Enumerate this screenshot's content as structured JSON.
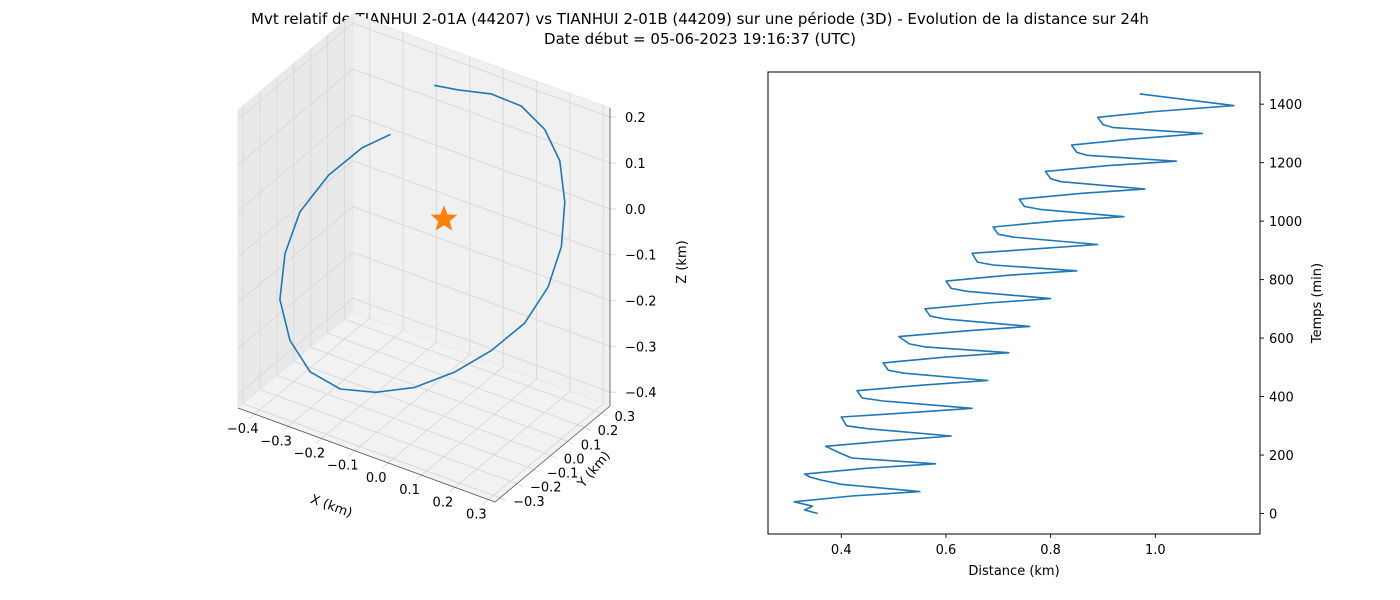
{
  "title_line1": "Mvt relatif de TIANHUI 2-01A (44207) vs TIANHUI 2-01B (44209) sur une période (3D) - Evolution de la distance sur 24h",
  "title_line2": "Date début = 05-06-2023 19:16:37 (UTC)",
  "colors": {
    "series": "#1f77b4",
    "marker": "#ff7f0e",
    "pane": "#f2f2f2",
    "grid": "#d8d8d8"
  },
  "chart_data": [
    {
      "type": "line3d",
      "xlabel": "X (km)",
      "ylabel": "Y (km)",
      "zlabel": "Z (km)",
      "xticks": [
        "−0.4",
        "−0.3",
        "−0.2",
        "−0.1",
        "0.0",
        "0.1",
        "0.2",
        "0.3"
      ],
      "yticks": [
        "−0.3",
        "−0.2",
        "−0.1",
        "0.0",
        "0.1",
        "0.2",
        "0.3"
      ],
      "zticks": [
        "−0.4",
        "−0.3",
        "−0.2",
        "−0.1",
        "0.0",
        "0.1",
        "0.2"
      ],
      "xlim": [
        -0.45,
        0.32
      ],
      "ylim": [
        -0.33,
        0.35
      ],
      "zlim": [
        -0.43,
        0.22
      ],
      "grid": true,
      "marker": {
        "shape": "star",
        "x": 0.0,
        "y": 0.0,
        "z": 0.0
      },
      "trajectory": [
        [
          -0.08,
          0.1,
          0.24
        ],
        [
          -0.02,
          0.12,
          0.24
        ],
        [
          0.06,
          0.16,
          0.24
        ],
        [
          0.13,
          0.2,
          0.22
        ],
        [
          0.18,
          0.24,
          0.17
        ],
        [
          0.21,
          0.27,
          0.1
        ],
        [
          0.22,
          0.28,
          0.01
        ],
        [
          0.21,
          0.28,
          -0.09
        ],
        [
          0.18,
          0.26,
          -0.18
        ],
        [
          0.13,
          0.22,
          -0.26
        ],
        [
          0.06,
          0.16,
          -0.32
        ],
        [
          -0.02,
          0.1,
          -0.37
        ],
        [
          -0.1,
          0.02,
          -0.4
        ],
        [
          -0.18,
          -0.05,
          -0.41
        ],
        [
          -0.25,
          -0.12,
          -0.4
        ],
        [
          -0.31,
          -0.18,
          -0.36
        ],
        [
          -0.35,
          -0.22,
          -0.29
        ],
        [
          -0.37,
          -0.24,
          -0.2
        ],
        [
          -0.36,
          -0.23,
          -0.1
        ],
        [
          -0.33,
          -0.2,
          -0.01
        ],
        [
          -0.27,
          -0.15,
          0.07
        ],
        [
          -0.2,
          -0.09,
          0.13
        ],
        [
          -0.14,
          -0.04,
          0.16
        ]
      ]
    },
    {
      "type": "line",
      "xlabel": "Distance (km)",
      "ylabel": "Temps (min)",
      "xlim": [
        0.26,
        1.2
      ],
      "ylim": [
        -70,
        1510
      ],
      "xticks": [
        0.4,
        0.6,
        0.8,
        1.0
      ],
      "yticks": [
        0,
        200,
        400,
        600,
        800,
        1000,
        1200,
        1400
      ],
      "y_axis_side": "right",
      "series": [
        {
          "x": [
            0.355,
            0.33,
            0.345,
            0.31,
            0.42,
            0.55,
            0.4,
            0.36,
            0.34,
            0.33,
            0.45,
            0.58,
            0.42,
            0.4,
            0.37,
            0.5,
            0.61,
            0.45,
            0.41,
            0.4,
            0.53,
            0.65,
            0.48,
            0.44,
            0.43,
            0.56,
            0.68,
            0.52,
            0.49,
            0.48,
            0.6,
            0.72,
            0.56,
            0.53,
            0.51,
            0.64,
            0.76,
            0.6,
            0.57,
            0.56,
            0.68,
            0.8,
            0.64,
            0.61,
            0.6,
            0.72,
            0.85,
            0.69,
            0.66,
            0.65,
            0.77,
            0.89,
            0.73,
            0.7,
            0.69,
            0.81,
            0.94,
            0.78,
            0.75,
            0.74,
            0.86,
            0.98,
            0.82,
            0.8,
            0.79,
            0.91,
            1.04,
            0.87,
            0.85,
            0.84,
            0.95,
            1.09,
            0.92,
            0.9,
            0.89,
            1.0,
            1.15,
            0.97
          ],
          "y": [
            0,
            12,
            25,
            40,
            60,
            75,
            100,
            115,
            125,
            135,
            155,
            170,
            190,
            205,
            230,
            250,
            265,
            290,
            300,
            330,
            345,
            360,
            385,
            395,
            420,
            440,
            455,
            480,
            490,
            515,
            535,
            550,
            570,
            580,
            605,
            625,
            640,
            665,
            675,
            700,
            720,
            735,
            760,
            770,
            795,
            815,
            830,
            850,
            860,
            890,
            905,
            920,
            945,
            955,
            980,
            1000,
            1015,
            1040,
            1050,
            1075,
            1095,
            1110,
            1135,
            1145,
            1170,
            1190,
            1205,
            1225,
            1235,
            1260,
            1280,
            1300,
            1320,
            1330,
            1355,
            1375,
            1395,
            1435
          ]
        }
      ]
    }
  ]
}
